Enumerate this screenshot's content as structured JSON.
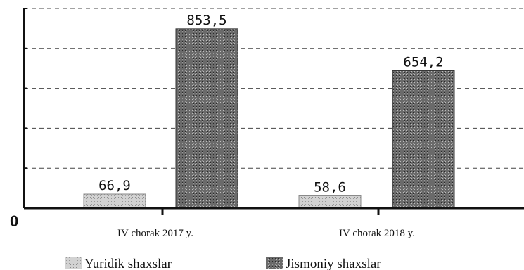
{
  "chart_data": {
    "type": "bar",
    "categories": [
      "IV chorak 2017 y.",
      "IV chorak 2018 y."
    ],
    "series": [
      {
        "name": "Yuridik shaxslar",
        "values": [
          "66,9",
          "58,6"
        ]
      },
      {
        "name": "Jismoniy shaxslar",
        "values": [
          "853,5",
          "654,2"
        ]
      }
    ],
    "y_origin_label": "0",
    "ylim": [
      0,
      950
    ],
    "grid": true,
    "legend_position": "bottom",
    "colors": {
      "yuridik": "#c8c8c8",
      "jismoniy": "#5a5a5a",
      "axis": "#111111",
      "grid": "#444444"
    }
  }
}
